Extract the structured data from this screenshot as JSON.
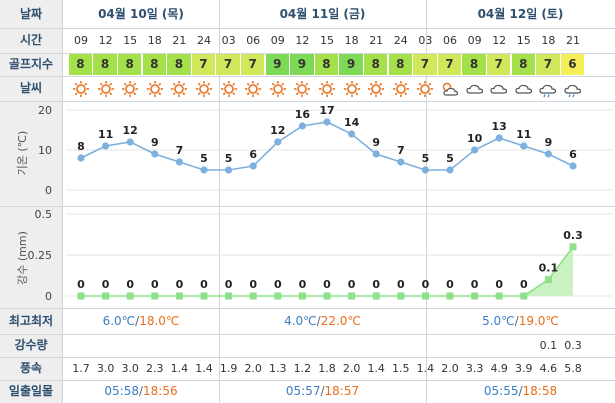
{
  "labels": {
    "date": "날짜",
    "time": "시간",
    "golf_index": "골프지수",
    "weather": "날씨",
    "temp_axis": "기온 (℃)",
    "precip_axis": "강수 (mm)",
    "minmax": "최고최저",
    "rainfall": "강수량",
    "wind": "풍속",
    "sun": "일출일몰"
  },
  "dates": [
    "04월 10일 (목)",
    "04월 11일 (금)",
    "04월 12일 (토)"
  ],
  "times": [
    "09",
    "12",
    "15",
    "18",
    "21",
    "24",
    "03",
    "06",
    "09",
    "12",
    "15",
    "18",
    "21",
    "24",
    "03",
    "06",
    "09",
    "12",
    "15",
    "18",
    "21"
  ],
  "golf": [
    8,
    8,
    8,
    8,
    8,
    7,
    7,
    7,
    9,
    9,
    8,
    9,
    8,
    8,
    7,
    7,
    8,
    7,
    8,
    7,
    6
  ],
  "golf_colors": {
    "9": "#7ed957",
    "8": "#a4e04a",
    "7": "#cfe95a",
    "6": "#f3ef55"
  },
  "weather": [
    "sun-icon",
    "sun-icon",
    "sun-icon",
    "sun-icon",
    "sun-icon",
    "sun-icon",
    "sun-icon",
    "sun-icon",
    "sun-icon",
    "sun-icon",
    "sun-icon",
    "sun-icon",
    "sun-icon",
    "sun-icon",
    "sun-icon",
    "partly-cloudy-icon",
    "cloudy-icon",
    "cloudy-icon",
    "cloudy-icon",
    "rain-cloud-icon",
    "rain-cloud-icon"
  ],
  "chart_data": [
    {
      "type": "line",
      "ylabel": "기온 (℃)",
      "yticks": [
        0,
        10,
        20
      ],
      "ylim": [
        0,
        20
      ],
      "x": [
        "09",
        "12",
        "15",
        "18",
        "21",
        "24",
        "03",
        "06",
        "09",
        "12",
        "15",
        "18",
        "21",
        "24",
        "03",
        "06",
        "09",
        "12",
        "15",
        "18",
        "21"
      ],
      "values": [
        8,
        11,
        12,
        9,
        7,
        5,
        5,
        6,
        12,
        16,
        17,
        14,
        9,
        7,
        5,
        5,
        10,
        13,
        11,
        9,
        6
      ],
      "color": "#7eb0de"
    },
    {
      "type": "area",
      "ylabel": "강수 (mm)",
      "yticks": [
        0,
        0.25,
        0.5
      ],
      "ylim": [
        0,
        0.5
      ],
      "x": [
        "09",
        "12",
        "15",
        "18",
        "21",
        "24",
        "03",
        "06",
        "09",
        "12",
        "15",
        "18",
        "21",
        "24",
        "03",
        "06",
        "09",
        "12",
        "15",
        "18",
        "21"
      ],
      "values": [
        0,
        0,
        0,
        0,
        0,
        0,
        0,
        0,
        0,
        0,
        0,
        0,
        0,
        0,
        0,
        0,
        0,
        0,
        0,
        0.1,
        0.3
      ],
      "color": "#8ee08a"
    }
  ],
  "minmax": [
    {
      "min": "6.0℃",
      "max": "18.0℃"
    },
    {
      "min": "4.0℃",
      "max": "22.0℃"
    },
    {
      "min": "5.0℃",
      "max": "19.0℃"
    }
  ],
  "rainfall": [
    "",
    "",
    "",
    "",
    "",
    "",
    "",
    "",
    "",
    "",
    "",
    "",
    "",
    "",
    "",
    "",
    "",
    "",
    "",
    "0.1",
    "0.3"
  ],
  "wind": [
    "1.7",
    "3.0",
    "3.0",
    "2.3",
    "1.4",
    "1.4",
    "1.9",
    "2.0",
    "1.3",
    "1.2",
    "1.8",
    "2.0",
    "1.4",
    "1.5",
    "1.4",
    "2.0",
    "3.3",
    "4.9",
    "3.9",
    "4.6",
    "5.8"
  ],
  "sun": [
    {
      "rise": "05:58",
      "set": "18:56"
    },
    {
      "rise": "05:57",
      "set": "18:57"
    },
    {
      "rise": "05:55",
      "set": "18:58"
    }
  ],
  "colors": {
    "label_bg": "#eeeeee",
    "label_text": "#2f4f6f",
    "grid": "#cfd5db",
    "sunrise": "#3a7fc4",
    "sunset": "#e86e1c"
  }
}
